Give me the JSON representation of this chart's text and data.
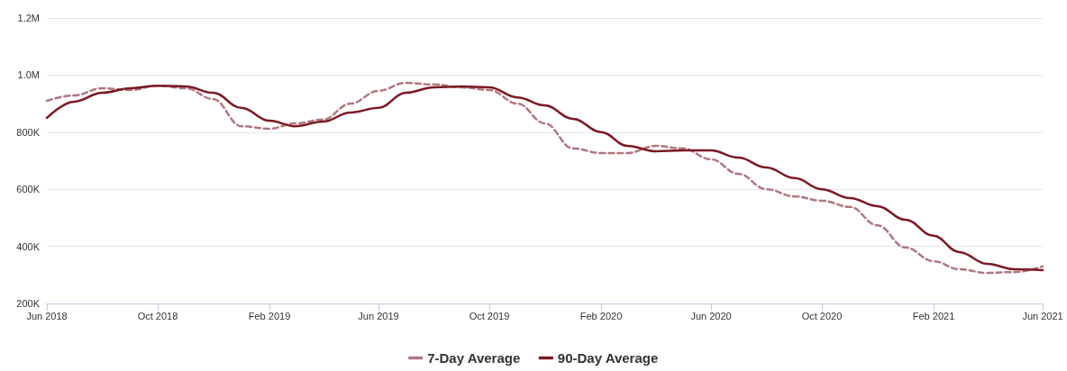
{
  "chart_data": {
    "type": "line",
    "x": [
      "2018-06",
      "2018-07",
      "2018-08",
      "2018-09",
      "2018-10",
      "2018-11",
      "2018-12",
      "2019-01",
      "2019-02",
      "2019-03",
      "2019-04",
      "2019-05",
      "2019-06",
      "2019-07",
      "2019-08",
      "2019-09",
      "2019-10",
      "2019-11",
      "2019-12",
      "2020-01",
      "2020-02",
      "2020-03",
      "2020-04",
      "2020-05",
      "2020-06",
      "2020-07",
      "2020-08",
      "2020-09",
      "2020-10",
      "2020-11",
      "2020-12",
      "2021-01",
      "2021-02",
      "2021-03",
      "2021-04",
      "2021-05",
      "2021-06"
    ],
    "series": [
      {
        "name": "7-Day Average",
        "color": "#b07880",
        "line_style": "dashed",
        "values": [
          910000,
          929000,
          954000,
          948000,
          963000,
          954000,
          916000,
          821000,
          812000,
          831000,
          844000,
          900000,
          945000,
          973000,
          967000,
          957000,
          948000,
          900000,
          831000,
          743000,
          727000,
          727000,
          752000,
          743000,
          705000,
          654000,
          600000,
          575000,
          560000,
          538000,
          474000,
          396000,
          348000,
          320000,
          307000,
          310000,
          330000
        ]
      },
      {
        "name": "90-Day Average",
        "color": "#7b1a24",
        "line_style": "solid",
        "values": [
          850000,
          907000,
          938000,
          954000,
          963000,
          960000,
          938000,
          885000,
          840000,
          821000,
          837000,
          869000,
          885000,
          938000,
          957000,
          960000,
          957000,
          922000,
          894000,
          847000,
          800000,
          752000,
          733000,
          736000,
          736000,
          711000,
          676000,
          639000,
          600000,
          569000,
          541000,
          493000,
          437000,
          380000,
          339000,
          320000,
          317000
        ]
      }
    ],
    "xlim": [
      "2018-06",
      "2021-06"
    ],
    "xticks": [
      {
        "value": "2018-06",
        "label": "Jun 2018"
      },
      {
        "value": "2018-10",
        "label": "Oct 2018"
      },
      {
        "value": "2019-02",
        "label": "Feb 2019"
      },
      {
        "value": "2019-06",
        "label": "Jun 2019"
      },
      {
        "value": "2019-10",
        "label": "Oct 2019"
      },
      {
        "value": "2020-02",
        "label": "Feb 2020"
      },
      {
        "value": "2020-06",
        "label": "Jun 2020"
      },
      {
        "value": "2020-10",
        "label": "Oct 2020"
      },
      {
        "value": "2021-02",
        "label": "Feb 2021"
      },
      {
        "value": "2021-06",
        "label": "Jun 2021"
      }
    ],
    "ylim": [
      200000,
      1200000
    ],
    "yticks": [
      {
        "value": 200000,
        "label": "200K"
      },
      {
        "value": 400000,
        "label": "400K"
      },
      {
        "value": 600000,
        "label": "600K"
      },
      {
        "value": 800000,
        "label": "800K"
      },
      {
        "value": 1000000,
        "label": "1.0M"
      },
      {
        "value": 1200000,
        "label": "1.2M"
      }
    ],
    "grid": "y",
    "legend": "bottom",
    "marker": "none"
  }
}
